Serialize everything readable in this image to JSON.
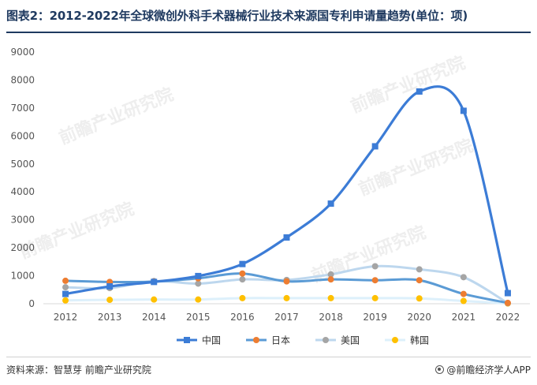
{
  "header": {
    "title": "图表2：2012-2022年全球微创外科手术器械行业技术来源国专利申请量趋势(单位：项)"
  },
  "footer": {
    "source": "资料来源：智慧芽 前瞻产业研究院",
    "brand": "@前瞻经济学人APP"
  },
  "watermark": {
    "text": "前瞻产业研究院"
  },
  "colors": {
    "title": "#1f3a60",
    "中国": "#3c7cd6",
    "日本": "#5b9bd5",
    "美国": "#bdd7ee",
    "韩国": "#ddf0fb",
    "日本_marker": "#ed7d31",
    "美国_marker": "#a5a5a5",
    "韩国_marker": "#ffc000",
    "axis": "#d9d9d9"
  },
  "chart_data": {
    "type": "line",
    "title": "",
    "xlabel": "",
    "ylabel": "",
    "categories": [
      "2012",
      "2013",
      "2014",
      "2015",
      "2016",
      "2017",
      "2018",
      "2019",
      "2020",
      "2021",
      "2022"
    ],
    "ylim": [
      0,
      9000
    ],
    "yticks": [
      "0",
      "1000",
      "2000",
      "3000",
      "4000",
      "5000",
      "6000",
      "7000",
      "8000",
      "9000"
    ],
    "grid": false,
    "legend": "bottom",
    "series": [
      {
        "name": "中国",
        "marker": "square",
        "values": [
          350,
          620,
          780,
          990,
          1420,
          2370,
          3580,
          5630,
          7590,
          6900,
          380
        ]
      },
      {
        "name": "日本",
        "marker": "circle",
        "values": [
          820,
          780,
          790,
          910,
          1080,
          800,
          870,
          840,
          840,
          350,
          30
        ]
      },
      {
        "name": "美国",
        "marker": "circle",
        "values": [
          590,
          560,
          810,
          720,
          870,
          850,
          1050,
          1340,
          1230,
          950,
          20
        ]
      },
      {
        "name": "韩国",
        "marker": "circle",
        "values": [
          120,
          140,
          150,
          150,
          200,
          200,
          200,
          200,
          190,
          100,
          10
        ]
      }
    ]
  }
}
